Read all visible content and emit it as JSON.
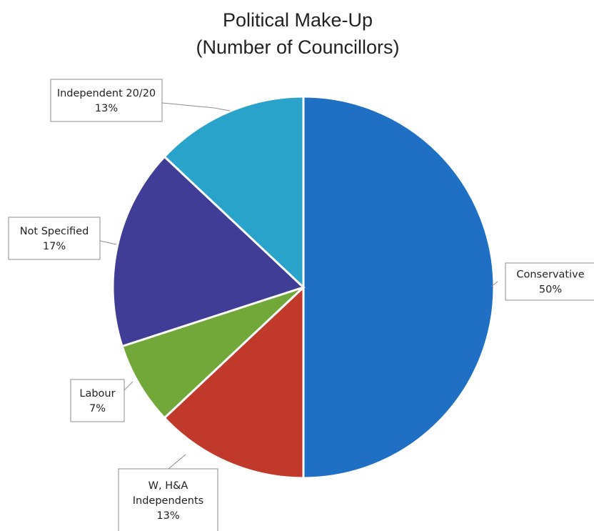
{
  "chart_data": {
    "type": "pie",
    "title_lines": [
      "Political Make-Up",
      "(Number of Councillors)"
    ],
    "slices": [
      {
        "label_lines": [
          "Conservative",
          "50%"
        ],
        "value": 50,
        "color": "#1f6fc5"
      },
      {
        "label_lines": [
          "W, H&A",
          "Independents",
          "13%"
        ],
        "value": 13,
        "color": "#c0392b"
      },
      {
        "label_lines": [
          "Labour",
          "7%"
        ],
        "value": 7,
        "color": "#72a83a"
      },
      {
        "label_lines": [
          "Not Specified",
          "17%"
        ],
        "value": 17,
        "color": "#3f3d96"
      },
      {
        "label_lines": [
          "Independent 20/20",
          "13%"
        ],
        "value": 13,
        "color": "#29a3c9"
      }
    ],
    "start": "12 o'clock",
    "direction": "clockwise",
    "legend": "none"
  }
}
